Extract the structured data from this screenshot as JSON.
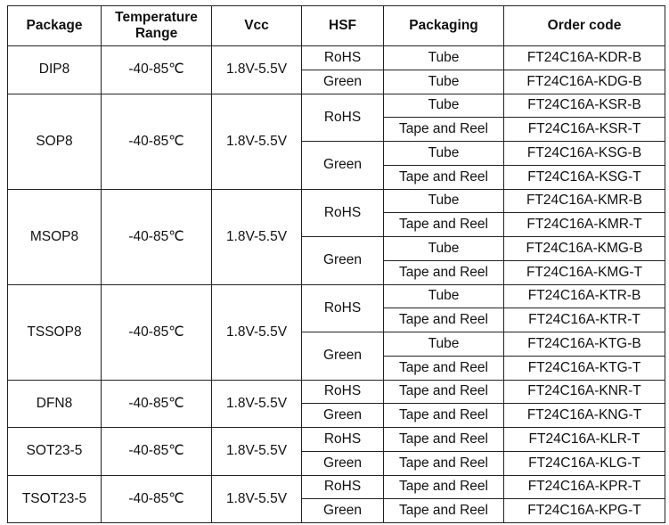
{
  "headers": [
    "Package",
    "Temperature Range",
    "Vcc",
    "HSF",
    "Packaging",
    "Order code"
  ],
  "groups": [
    {
      "package": "DIP8",
      "temp": "-40-85℃",
      "vcc": "1.8V-5.5V",
      "hsf": [
        {
          "name": "RoHS",
          "rows": [
            {
              "packaging": "Tube",
              "code": "FT24C16A-KDR-B"
            }
          ]
        },
        {
          "name": "Green",
          "rows": [
            {
              "packaging": "Tube",
              "code": "FT24C16A-KDG-B"
            }
          ]
        }
      ]
    },
    {
      "package": "SOP8",
      "temp": "-40-85℃",
      "vcc": "1.8V-5.5V",
      "hsf": [
        {
          "name": "RoHS",
          "rows": [
            {
              "packaging": "Tube",
              "code": "FT24C16A-KSR-B"
            },
            {
              "packaging": "Tape and Reel",
              "code": "FT24C16A-KSR-T"
            }
          ]
        },
        {
          "name": "Green",
          "rows": [
            {
              "packaging": "Tube",
              "code": "FT24C16A-KSG-B"
            },
            {
              "packaging": "Tape and Reel",
              "code": "FT24C16A-KSG-T"
            }
          ]
        }
      ]
    },
    {
      "package": "MSOP8",
      "temp": "-40-85℃",
      "vcc": "1.8V-5.5V",
      "hsf": [
        {
          "name": "RoHS",
          "rows": [
            {
              "packaging": "Tube",
              "code": "FT24C16A-KMR-B"
            },
            {
              "packaging": "Tape and Reel",
              "code": "FT24C16A-KMR-T"
            }
          ]
        },
        {
          "name": "Green",
          "rows": [
            {
              "packaging": "Tube",
              "code": "FT24C16A-KMG-B"
            },
            {
              "packaging": "Tape and Reel",
              "code": "FT24C16A-KMG-T"
            }
          ]
        }
      ]
    },
    {
      "package": "TSSOP8",
      "temp": "-40-85℃",
      "vcc": "1.8V-5.5V",
      "hsf": [
        {
          "name": "RoHS",
          "rows": [
            {
              "packaging": "Tube",
              "code": "FT24C16A-KTR-B"
            },
            {
              "packaging": "Tape and Reel",
              "code": "FT24C16A-KTR-T"
            }
          ]
        },
        {
          "name": "Green",
          "rows": [
            {
              "packaging": "Tube",
              "code": "FT24C16A-KTG-B"
            },
            {
              "packaging": "Tape and Reel",
              "code": "FT24C16A-KTG-T"
            }
          ]
        }
      ]
    },
    {
      "package": "DFN8",
      "temp": "-40-85℃",
      "vcc": "1.8V-5.5V",
      "hsf": [
        {
          "name": "RoHS",
          "rows": [
            {
              "packaging": "Tape and Reel",
              "code": "FT24C16A-KNR-T"
            }
          ]
        },
        {
          "name": "Green",
          "rows": [
            {
              "packaging": "Tape and Reel",
              "code": "FT24C16A-KNG-T"
            }
          ]
        }
      ]
    },
    {
      "package": "SOT23-5",
      "temp": "-40-85℃",
      "vcc": "1.8V-5.5V",
      "hsf": [
        {
          "name": "RoHS",
          "rows": [
            {
              "packaging": "Tape and Reel",
              "code": "FT24C16A-KLR-T"
            }
          ]
        },
        {
          "name": "Green",
          "rows": [
            {
              "packaging": "Tape and Reel",
              "code": "FT24C16A-KLG-T"
            }
          ]
        }
      ]
    },
    {
      "package": "TSOT23-5",
      "temp": "-40-85℃",
      "vcc": "1.8V-5.5V",
      "hsf": [
        {
          "name": "RoHS",
          "rows": [
            {
              "packaging": "Tape and Reel",
              "code": "FT24C16A-KPR-T"
            }
          ]
        },
        {
          "name": "Green",
          "rows": [
            {
              "packaging": "Tape and Reel",
              "code": "FT24C16A-KPG-T"
            }
          ]
        }
      ]
    }
  ]
}
